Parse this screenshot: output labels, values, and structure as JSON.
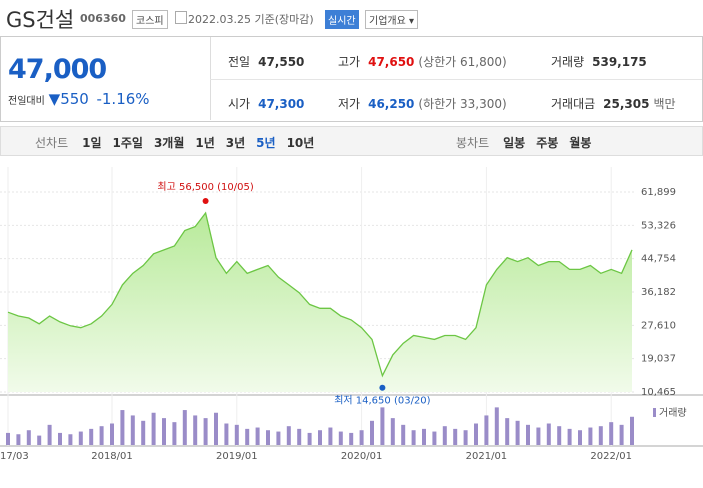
{
  "header": {
    "name": "GS건설",
    "code": "006360",
    "market": "코스피",
    "date": "2022.03.25 기준(장마감)",
    "realtime": "실시간",
    "company_info": "기업개요"
  },
  "quote": {
    "price": "47,000",
    "change_label": "전일대비",
    "change": "550",
    "change_pct": "-1.16%"
  },
  "stats": [
    [
      {
        "label": "전일",
        "value": "47,550"
      },
      {
        "label": "고가",
        "value": "47,650",
        "note": "(상한가 61,800)"
      },
      {
        "label": "거래량",
        "value": "539,175"
      }
    ],
    [
      {
        "label": "시가",
        "value": "47,300"
      },
      {
        "label": "저가",
        "value": "46,250",
        "note": "(하한가 33,300)"
      },
      {
        "label": "거래대금",
        "value": "25,305",
        "note": "백만"
      }
    ]
  ],
  "tabs": {
    "line_title": "선차트",
    "line": [
      "1일",
      "1주일",
      "3개월",
      "1년",
      "3년",
      "5년",
      "10년"
    ],
    "candle_title": "봉차트",
    "candle": [
      "일봉",
      "주봉",
      "월봉"
    ]
  },
  "chart_data": [
    {
      "type": "line",
      "categories": [
        "2017/03",
        null,
        null,
        null,
        null,
        null,
        null,
        null,
        null,
        null,
        "2018/01",
        null,
        null,
        null,
        null,
        null,
        null,
        null,
        null,
        null,
        null,
        null,
        "2019/01",
        null,
        null,
        null,
        null,
        null,
        null,
        null,
        null,
        null,
        null,
        null,
        "2020/01",
        null,
        null,
        null,
        null,
        null,
        null,
        null,
        null,
        null,
        null,
        null,
        "2021/01",
        null,
        null,
        null,
        null,
        null,
        null,
        null,
        null,
        null,
        null,
        null,
        "2022/01",
        null,
        null
      ],
      "series": [
        {
          "color": "#6cc644",
          "values": [
            31000,
            30000,
            29500,
            28000,
            30000,
            28500,
            27500,
            27000,
            28000,
            30000,
            33000,
            38000,
            41000,
            43000,
            46000,
            47000,
            48000,
            52000,
            53000,
            56500,
            45000,
            41000,
            44000,
            41000,
            42000,
            43000,
            40000,
            38000,
            36000,
            33000,
            32000,
            32000,
            30000,
            29000,
            27000,
            24000,
            14650,
            20000,
            23000,
            25000,
            24500,
            24000,
            25000,
            25000,
            24000,
            27000,
            38000,
            42000,
            45000,
            44000,
            45000,
            43000,
            44000,
            44000,
            42000,
            42000,
            43000,
            41000,
            42000,
            41000,
            47000
          ]
        }
      ],
      "ylim": [
        10465,
        61899
      ],
      "yticks": [
        {
          "value": 10465,
          "label": "10,465"
        },
        {
          "value": 19037,
          "label": "19,037"
        },
        {
          "value": 27610,
          "label": "27,610"
        },
        {
          "value": 36182,
          "label": "36,182"
        },
        {
          "value": 44754,
          "label": "44,754"
        },
        {
          "value": 53326,
          "label": "53,326"
        },
        {
          "value": 61899,
          "label": "61,899"
        }
      ],
      "grid": true,
      "annotations": {
        "high": "최고 56,500 (10/05)",
        "low": "최저 14,650 (03/20)"
      }
    },
    {
      "type": "bar",
      "series": [
        {
          "name": "거래량",
          "color": "#9a8cc8",
          "values": [
            900000,
            800000,
            1100000,
            700000,
            1500000,
            900000,
            800000,
            1000000,
            1200000,
            1400000,
            1600000,
            2600000,
            2200000,
            1800000,
            2400000,
            2000000,
            1700000,
            2600000,
            2200000,
            2000000,
            2400000,
            1600000,
            1500000,
            1200000,
            1300000,
            1100000,
            1000000,
            1400000,
            1200000,
            900000,
            1100000,
            1300000,
            1000000,
            900000,
            1100000,
            1800000,
            2800000,
            2000000,
            1500000,
            1100000,
            1200000,
            1000000,
            1400000,
            1200000,
            1100000,
            1600000,
            2200000,
            2800000,
            2000000,
            1800000,
            1500000,
            1300000,
            1600000,
            1400000,
            1200000,
            1100000,
            1300000,
            1400000,
            1700000,
            1500000,
            2100000
          ]
        }
      ],
      "ylim": [
        0,
        3200000
      ]
    }
  ]
}
